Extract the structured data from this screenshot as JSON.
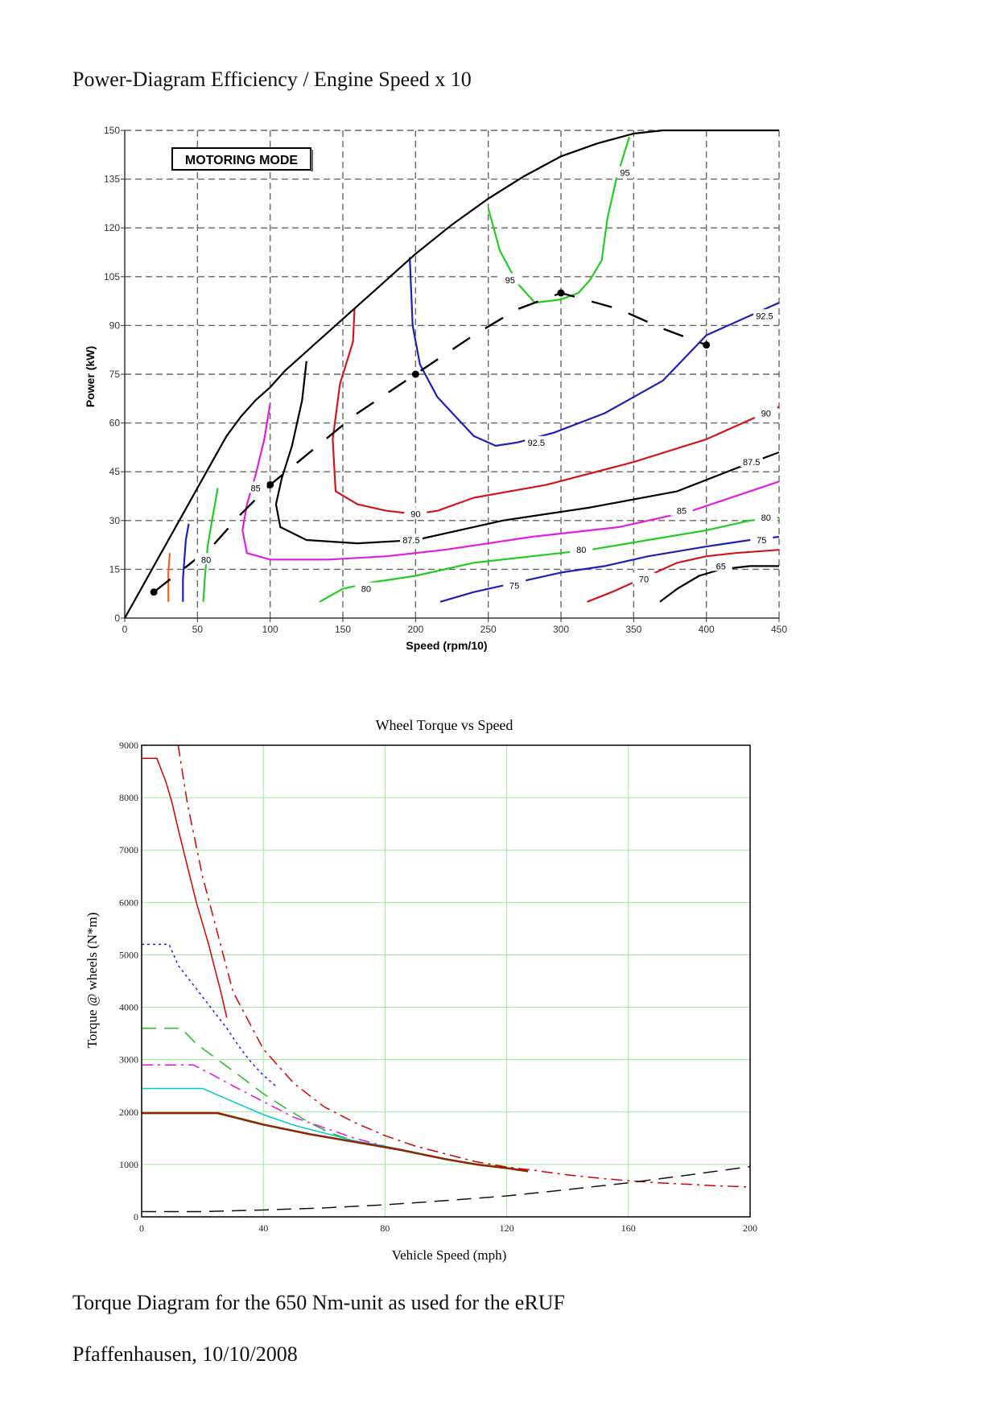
{
  "document": {
    "heading": "Power-Diagram Efficiency / Engine Speed x 10",
    "caption": "Torque Diagram for the 650 Nm-unit as used for the eRUF",
    "place_date": "Pfaffenhausen, 10/10/2008"
  },
  "chart_data": [
    {
      "type": "contour",
      "title": "",
      "badge": "MOTORING MODE",
      "xlabel": "Speed (rpm/10)",
      "ylabel": "Power (kW)",
      "xlim": [
        0,
        450
      ],
      "ylim": [
        0,
        150
      ],
      "xticks": [
        0,
        50,
        100,
        150,
        200,
        250,
        300,
        350,
        400,
        450
      ],
      "yticks": [
        0,
        15,
        30,
        45,
        60,
        75,
        90,
        105,
        120,
        135,
        150
      ],
      "grid": true,
      "colors": {
        "black": "#000000",
        "red": "#d0161b",
        "blue": "#1f1fb4",
        "green": "#22cc22",
        "magenta": "#e01ee0",
        "orange": "#e8641e"
      },
      "envelope": {
        "name": "",
        "color": "black",
        "x": [
          0,
          10,
          20,
          30,
          40,
          50,
          60,
          70,
          80,
          90,
          100,
          110,
          120,
          130,
          150,
          175,
          200,
          225,
          250,
          275,
          300,
          325,
          350,
          370,
          390,
          410,
          450
        ],
        "y": [
          0,
          8,
          16,
          24,
          32,
          40,
          48,
          56,
          62,
          67,
          71,
          76,
          80,
          84,
          92,
          102,
          112,
          121,
          129,
          136,
          142,
          146,
          149,
          150,
          150,
          150,
          150
        ]
      },
      "optimum_path": {
        "name": "",
        "color": "black",
        "x": [
          20,
          40,
          60,
          80,
          100,
          130,
          160,
          200,
          240,
          270,
          300,
          340,
          370,
          400
        ],
        "y": [
          8,
          15,
          22,
          32,
          41,
          52,
          63,
          75,
          87,
          95,
          100,
          95,
          89,
          84
        ]
      },
      "contours": [
        {
          "label": "95",
          "color": "green",
          "x": [
            250,
            258,
            270,
            282,
            300,
            312,
            320,
            328,
            332,
            338,
            347
          ],
          "y": [
            126,
            113,
            103,
            97,
            98,
            100,
            104,
            110,
            123,
            135,
            148
          ]
        },
        {
          "label": "92.5",
          "color": "blue",
          "x": [
            196,
            198,
            203,
            215,
            240,
            255,
            270,
            295,
            330,
            370,
            400,
            430,
            450
          ],
          "y": [
            111,
            90,
            78,
            68,
            56,
            53,
            54,
            57,
            63,
            73,
            87,
            93,
            97
          ]
        },
        {
          "label": "90",
          "color": "red",
          "x": [
            158,
            157,
            148,
            143,
            145,
            160,
            180,
            200,
            215,
            240,
            290,
            350,
            400,
            450
          ],
          "y": [
            95,
            85,
            72,
            55,
            39,
            35,
            33,
            32,
            33,
            37,
            41,
            48,
            55,
            65
          ]
        },
        {
          "label": "87.5",
          "color": "black",
          "x": [
            125,
            122,
            115,
            108,
            104,
            107,
            125,
            160,
            200,
            230,
            260,
            320,
            380,
            420,
            450
          ],
          "y": [
            79,
            67,
            53,
            43,
            35,
            28,
            24,
            23,
            24,
            27,
            30,
            34,
            39,
            46,
            51
          ]
        },
        {
          "label": "85",
          "color": "magenta",
          "x": [
            100,
            96,
            90,
            84,
            81,
            84,
            100,
            140,
            180,
            220,
            280,
            340,
            390,
            450
          ],
          "y": [
            66,
            55,
            44,
            35,
            27,
            20,
            18,
            18,
            19,
            21,
            25,
            28,
            33,
            42
          ]
        },
        {
          "label": "80",
          "color": "green",
          "x": [
            134,
            150,
            170,
            200,
            240,
            280,
            320,
            360,
            400,
            430,
            450
          ],
          "y": [
            5,
            9,
            11,
            13,
            17,
            19,
            21,
            24,
            27,
            30,
            31
          ]
        },
        {
          "label": "80",
          "color": "green",
          "x": [
            64,
            60,
            57,
            55,
            54
          ],
          "y": [
            40,
            30,
            22,
            12,
            5
          ]
        },
        {
          "label": "75",
          "color": "blue",
          "x": [
            217,
            240,
            270,
            300,
            330,
            360,
            400,
            430,
            450
          ],
          "y": [
            5,
            8,
            11,
            14,
            16,
            19,
            22,
            24,
            25
          ]
        },
        {
          "label": "75",
          "color": "blue",
          "x": [
            44,
            42,
            41,
            40,
            40
          ],
          "y": [
            29,
            24,
            18,
            12,
            5
          ]
        },
        {
          "label": "70",
          "color": "red",
          "x": [
            318,
            335,
            350,
            365,
            380,
            400,
            420,
            450
          ],
          "y": [
            5,
            8,
            11,
            14,
            17,
            19,
            20,
            21
          ]
        },
        {
          "label": "70",
          "color": "orange",
          "x": [
            31,
            30,
            30,
            30
          ],
          "y": [
            20,
            14,
            9,
            5
          ]
        },
        {
          "label": "65",
          "color": "black",
          "x": [
            368,
            380,
            395,
            410,
            430,
            450
          ],
          "y": [
            5,
            9,
            13,
            15,
            16,
            16
          ]
        }
      ],
      "operating_points": {
        "x": [
          20,
          100,
          200,
          300,
          400
        ],
        "y": [
          8,
          41,
          75,
          100,
          84
        ]
      },
      "contour_labels": [
        {
          "text": "95",
          "x": 344,
          "y": 137
        },
        {
          "text": "95",
          "x": 265,
          "y": 104
        },
        {
          "text": "92.5",
          "x": 440,
          "y": 93
        },
        {
          "text": "92.5",
          "x": 283,
          "y": 54
        },
        {
          "text": "90",
          "x": 441,
          "y": 63
        },
        {
          "text": "90",
          "x": 200,
          "y": 32
        },
        {
          "text": "87.5",
          "x": 431,
          "y": 48
        },
        {
          "text": "87.5",
          "x": 197,
          "y": 24
        },
        {
          "text": "85",
          "x": 383,
          "y": 33
        },
        {
          "text": "85",
          "x": 90,
          "y": 40
        },
        {
          "text": "80",
          "x": 441,
          "y": 31
        },
        {
          "text": "80",
          "x": 314,
          "y": 21
        },
        {
          "text": "80",
          "x": 166,
          "y": 9
        },
        {
          "text": "80",
          "x": 56,
          "y": 18
        },
        {
          "text": "75",
          "x": 438,
          "y": 24
        },
        {
          "text": "75",
          "x": 268,
          "y": 10
        },
        {
          "text": "70",
          "x": 357,
          "y": 12
        },
        {
          "text": "65",
          "x": 410,
          "y": 16
        }
      ]
    },
    {
      "type": "line",
      "title": "Wheel Torque vs Speed",
      "xlabel": "Vehicle Speed (mph)",
      "ylabel": "Torque @ wheels (N*m)",
      "xlim": [
        0,
        200
      ],
      "ylim": [
        0,
        9000
      ],
      "xticks": [
        0,
        40,
        80,
        120,
        160,
        200
      ],
      "yticks": [
        0,
        1000,
        2000,
        3000,
        4000,
        5000,
        6000,
        7000,
        8000,
        9000
      ],
      "grid": true,
      "legend": "none",
      "series": [
        {
          "color": "#d40000",
          "dash": "solid",
          "x": [
            0,
            5,
            8,
            10,
            12,
            15,
            18,
            22,
            26,
            28
          ],
          "y": [
            8750,
            8750,
            8300,
            7900,
            7400,
            6700,
            6000,
            5200,
            4300,
            3800
          ]
        },
        {
          "color": "#d40000",
          "dash": "dashdot",
          "x": [
            12,
            15,
            20,
            25,
            30,
            40,
            50,
            60,
            70,
            80,
            90,
            100,
            110,
            120,
            130,
            140,
            150,
            160,
            170,
            180,
            190,
            200
          ],
          "y": [
            9000,
            7900,
            6500,
            5400,
            4300,
            3200,
            2550,
            2100,
            1800,
            1550,
            1350,
            1200,
            1050,
            950,
            880,
            800,
            740,
            690,
            650,
            620,
            590,
            570
          ]
        },
        {
          "color": "#1a1aff",
          "dash": "dotted",
          "x": [
            0,
            9,
            12,
            16,
            20,
            24,
            28,
            32,
            36,
            40,
            44
          ],
          "y": [
            5200,
            5200,
            4800,
            4500,
            4200,
            3900,
            3600,
            3250,
            2950,
            2700,
            2500
          ]
        },
        {
          "color": "#22bb22",
          "dash": "dashed",
          "x": [
            0,
            13,
            18,
            25,
            32,
            40,
            48,
            55,
            62,
            70
          ],
          "y": [
            3600,
            3600,
            3300,
            3000,
            2700,
            2350,
            2050,
            1800,
            1600,
            1450
          ]
        },
        {
          "color": "#e010e0",
          "dash": "dashdot",
          "x": [
            0,
            17,
            22,
            30,
            40,
            50,
            60,
            70,
            80
          ],
          "y": [
            2900,
            2900,
            2750,
            2500,
            2200,
            1900,
            1700,
            1500,
            1350
          ]
        },
        {
          "color": "#00cccc",
          "dash": "solid",
          "x": [
            0,
            20,
            30,
            40,
            50,
            60,
            70,
            80,
            90,
            100
          ],
          "y": [
            2450,
            2450,
            2200,
            1950,
            1750,
            1600,
            1450,
            1350,
            1220,
            1100
          ]
        },
        {
          "color": "#8a2800",
          "dash": "solid",
          "x": [
            0,
            25,
            40,
            55,
            70,
            85,
            100,
            110,
            120,
            127
          ],
          "y": [
            1980,
            1980,
            1760,
            1580,
            1430,
            1280,
            1100,
            1000,
            930,
            870
          ]
        },
        {
          "color": "#111111",
          "dash": "dashed",
          "x": [
            0,
            20,
            40,
            60,
            80,
            100,
            120,
            140,
            160,
            180,
            200
          ],
          "y": [
            100,
            100,
            130,
            170,
            230,
            310,
            400,
            520,
            650,
            800,
            960
          ]
        }
      ]
    }
  ]
}
